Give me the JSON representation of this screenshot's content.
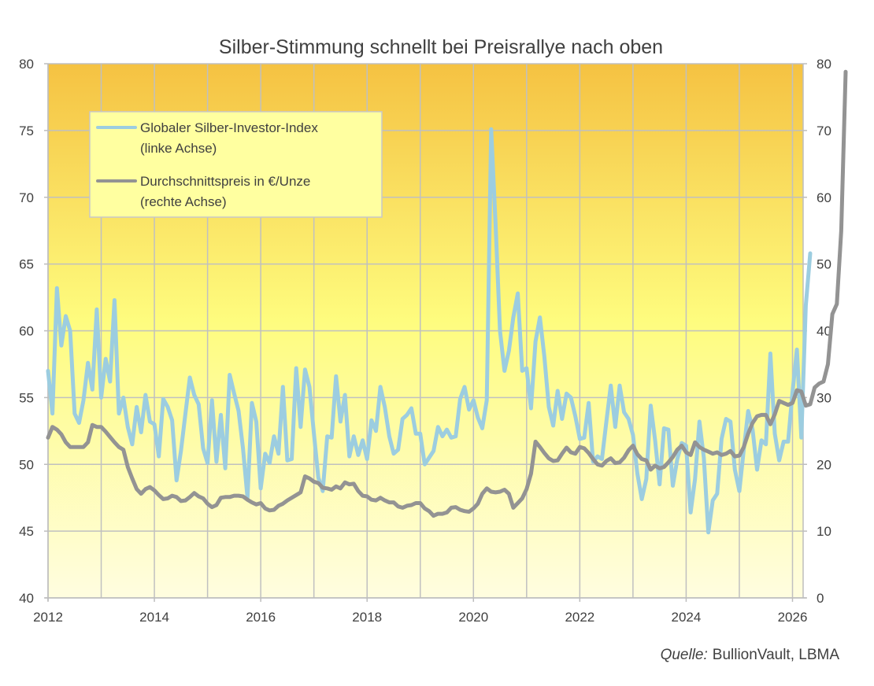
{
  "chart_data": {
    "type": "line",
    "title": "Silber-Stimmung schnellt bei Preisrallye nach oben",
    "source_label": "Quelle:",
    "source_text": "BullionVault, LBMA",
    "x_start": "2012-01",
    "x_frequency": "monthly",
    "x_ticks": [
      "2012",
      "2014",
      "2016",
      "2018",
      "2020",
      "2022",
      "2024",
      "2026"
    ],
    "x_range": [
      2012,
      2026.2
    ],
    "y_left": {
      "range": [
        40,
        80
      ],
      "ticks": [
        "40",
        "45",
        "50",
        "55",
        "60",
        "65",
        "70",
        "75",
        "80"
      ]
    },
    "y_right": {
      "range": [
        0,
        80
      ],
      "ticks": [
        "0",
        "10",
        "20",
        "30",
        "40",
        "50",
        "60",
        "70",
        "80"
      ]
    },
    "grid": true,
    "legend_position": "top-left",
    "background_gradient": [
      "#f5c242",
      "#fefc7e",
      "#fffde0"
    ],
    "series": [
      {
        "name": "Globaler Silber-Investor-Index",
        "name_line2": "(linke Achse)",
        "axis": "left",
        "color": "#9ccde0",
        "values": [
          57.0,
          53.8,
          63.2,
          58.9,
          61.1,
          60.0,
          53.8,
          53.1,
          54.8,
          57.6,
          55.6,
          61.6,
          55.0,
          57.9,
          56.2,
          62.3,
          53.8,
          55.0,
          52.8,
          51.5,
          54.3,
          52.4,
          55.2,
          53.2,
          53.0,
          50.6,
          54.9,
          54.3,
          53.3,
          48.8,
          51.0,
          53.8,
          56.5,
          55.2,
          54.5,
          51.2,
          50.1,
          54.8,
          50.2,
          53.7,
          49.7,
          56.7,
          55.3,
          54.0,
          51.2,
          47.5,
          54.6,
          53.2,
          48.2,
          50.8,
          50.1,
          52.1,
          50.8,
          55.8,
          50.3,
          50.4,
          57.2,
          52.8,
          57.1,
          55.8,
          52.3,
          49.0,
          48.0,
          52.1,
          52.0,
          56.6,
          53.2,
          55.2,
          50.6,
          52.1,
          50.7,
          51.8,
          50.4,
          53.3,
          52.5,
          55.8,
          54.3,
          52.1,
          50.8,
          51.1,
          53.4,
          53.7,
          54.2,
          52.3,
          52.3,
          50.0,
          50.5,
          51.0,
          52.8,
          52.1,
          52.6,
          52.0,
          52.1,
          54.9,
          55.8,
          54.1,
          54.8,
          53.5,
          52.7,
          54.8,
          75.1,
          68.0,
          60.0,
          57.0,
          58.5,
          61.0,
          62.8,
          57.0,
          57.2,
          54.2,
          59.2,
          61.0,
          58.1,
          54.3,
          52.9,
          55.5,
          53.4,
          55.3,
          55.0,
          53.6,
          51.9,
          52.0,
          54.6,
          50.2,
          50.6,
          50.4,
          53.2,
          55.9,
          52.8,
          55.9,
          53.9,
          53.4,
          52.2,
          49.3,
          47.4,
          48.9,
          54.4,
          51.8,
          48.5,
          52.7,
          52.6,
          48.4,
          50.4,
          51.6,
          51.4,
          46.4,
          48.9,
          53.2,
          50.5,
          44.9,
          47.3,
          47.8,
          51.9,
          53.4,
          53.2,
          49.6,
          48.0,
          51.1,
          54.0,
          52.6,
          49.6,
          51.8,
          51.5,
          58.3,
          52.3,
          50.3,
          51.7,
          51.7,
          55.4,
          58.6,
          52.0,
          61.9,
          65.8
        ]
      },
      {
        "name": "Durchschnittspreis in €/Unze",
        "name_line2": "(rechte Achse)",
        "axis": "right",
        "color": "#939393",
        "values": [
          24.0,
          25.6,
          25.2,
          24.5,
          23.3,
          22.6,
          22.6,
          22.6,
          22.6,
          23.3,
          25.9,
          25.6,
          25.6,
          24.9,
          24.1,
          23.3,
          22.6,
          22.2,
          19.6,
          17.9,
          16.3,
          15.6,
          16.3,
          16.6,
          16.1,
          15.4,
          14.8,
          14.9,
          15.3,
          15.1,
          14.5,
          14.6,
          15.1,
          15.7,
          15.2,
          14.9,
          14.1,
          13.6,
          13.9,
          15.0,
          15.1,
          15.1,
          15.3,
          15.3,
          15.2,
          14.7,
          14.3,
          14.0,
          14.2,
          13.4,
          13.1,
          13.2,
          13.8,
          14.1,
          14.6,
          15.0,
          15.4,
          15.8,
          18.2,
          17.9,
          17.4,
          17.2,
          16.5,
          16.4,
          16.2,
          16.7,
          16.4,
          17.3,
          17.0,
          17.1,
          16.0,
          15.3,
          15.2,
          14.7,
          14.6,
          15.0,
          14.6,
          14.3,
          14.3,
          13.7,
          13.5,
          13.8,
          13.9,
          14.2,
          14.2,
          13.4,
          13.0,
          12.3,
          12.6,
          12.6,
          12.8,
          13.5,
          13.6,
          13.2,
          13.0,
          12.9,
          13.4,
          14.1,
          15.6,
          16.4,
          15.9,
          15.8,
          15.9,
          16.2,
          15.6,
          13.5,
          14.2,
          14.9,
          16.3,
          18.6,
          23.4,
          22.6,
          21.7,
          20.9,
          20.5,
          20.6,
          21.6,
          22.5,
          21.8,
          21.6,
          22.6,
          22.4,
          21.7,
          20.8,
          20.0,
          19.8,
          20.5,
          20.9,
          20.2,
          20.3,
          21.0,
          22.1,
          22.8,
          21.5,
          20.8,
          20.6,
          19.2,
          19.8,
          19.4,
          19.6,
          20.3,
          21.1,
          22.2,
          22.8,
          21.8,
          21.4,
          23.3,
          22.6,
          22.2,
          21.9,
          21.6,
          21.8,
          21.4,
          21.6,
          22.0,
          21.2,
          21.3,
          22.6,
          24.6,
          26.2,
          27.2,
          27.4,
          27.4,
          26.0,
          27.5,
          29.5,
          29.2,
          28.9,
          29.2,
          31.1,
          30.9,
          28.8,
          29.0,
          31.5,
          32.1,
          32.4,
          35.0,
          42.5,
          44.0,
          55.0,
          78.8
        ]
      }
    ]
  }
}
